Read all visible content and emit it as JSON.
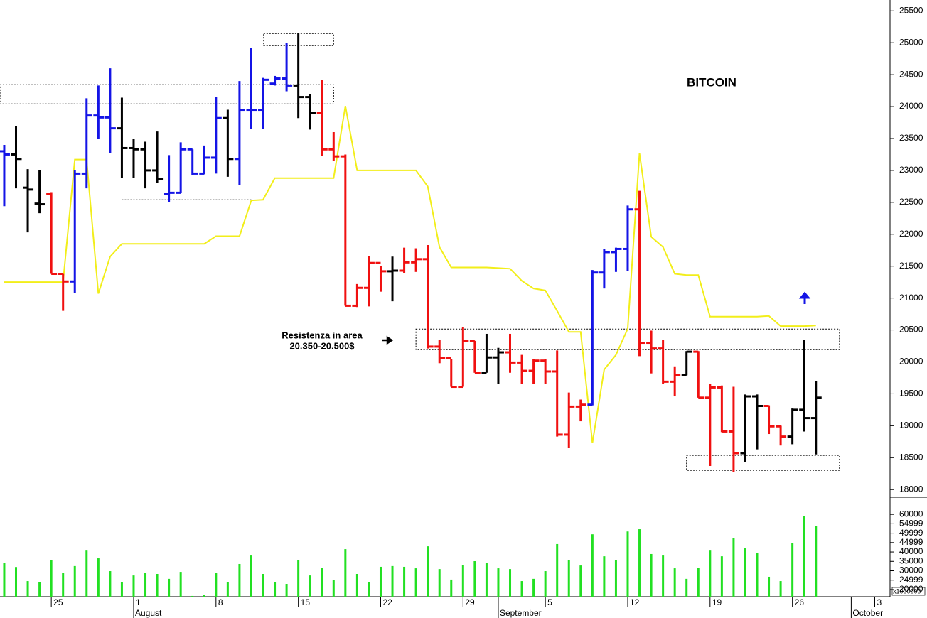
{
  "chart_data": {
    "type": "ohlc",
    "title": "BITCOIN",
    "annotation": [
      "Resistenza in area",
      "20.350-20.500$"
    ],
    "open": [
      23300,
      23250,
      22730,
      22480,
      22630,
      21380,
      21260,
      22950,
      23860,
      23830,
      23660,
      23350,
      23330,
      23000,
      22630,
      22650,
      23330,
      22950,
      23200,
      23820,
      23180,
      23950,
      23950,
      24360,
      24440,
      24330,
      24150,
      23900,
      23330,
      23220,
      20880,
      21160,
      21550,
      21420,
      21430,
      21560,
      21610,
      20240,
      20060,
      19610,
      20330,
      19830,
      20070,
      20150,
      19990,
      19860,
      20020,
      19850,
      18860,
      19300,
      19330,
      21400,
      21720,
      21770,
      22390,
      20300,
      20210,
      19690,
      19790,
      20160,
      19440,
      19600,
      18910,
      18570,
      19460,
      19310,
      18990,
      18830,
      19250,
      19120
    ],
    "high": [
      23400,
      23690,
      23020,
      23000,
      22660,
      21380,
      23000,
      24130,
      24330,
      24600,
      24140,
      23490,
      23450,
      23610,
      23240,
      23440,
      23330,
      23390,
      24150,
      23950,
      24400,
      24920,
      24450,
      24480,
      25000,
      25150,
      24200,
      24420,
      23600,
      23250,
      21220,
      21660,
      21500,
      21650,
      21790,
      21780,
      21830,
      20350,
      20050,
      20550,
      20330,
      20440,
      20220,
      20440,
      20110,
      20050,
      20050,
      20180,
      19520,
      19410,
      21440,
      21770,
      21790,
      22450,
      22680,
      20490,
      20350,
      19930,
      20170,
      20170,
      19660,
      19630,
      19610,
      19490,
      19490,
      19320,
      19000,
      19270,
      20350,
      19700
    ],
    "low": [
      22440,
      22720,
      22030,
      22330,
      21380,
      20800,
      21080,
      22720,
      23490,
      23270,
      22880,
      22880,
      22720,
      22800,
      22500,
      22650,
      22930,
      22940,
      22950,
      22900,
      22770,
      23650,
      23650,
      24330,
      24240,
      23820,
      23640,
      23230,
      23150,
      20880,
      20860,
      20870,
      21100,
      20950,
      21390,
      21410,
      20210,
      19980,
      19610,
      19610,
      19830,
      19830,
      19660,
      19830,
      19660,
      19660,
      19660,
      18830,
      18650,
      19070,
      19320,
      21150,
      21410,
      21430,
      20090,
      19820,
      19660,
      19460,
      19790,
      19440,
      18370,
      18900,
      18280,
      18430,
      18630,
      18870,
      18690,
      18710,
      18910,
      18550
    ],
    "close": [
      23250,
      23180,
      22700,
      22470,
      21380,
      21260,
      22950,
      23860,
      23830,
      23660,
      23350,
      23330,
      23000,
      22860,
      22650,
      23330,
      22950,
      23200,
      23820,
      23180,
      23950,
      23950,
      24420,
      24440,
      24330,
      24150,
      23900,
      23330,
      23220,
      20880,
      21160,
      21550,
      21420,
      21430,
      21560,
      21610,
      20240,
      20060,
      19610,
      20330,
      19830,
      20070,
      20150,
      19990,
      19860,
      20020,
      19850,
      18860,
      19300,
      19330,
      21400,
      21720,
      21770,
      22390,
      20300,
      20210,
      19690,
      19790,
      20160,
      19440,
      19600,
      18910,
      18570,
      19460,
      19310,
      18990,
      18830,
      19250,
      19120,
      19440
    ],
    "colors": [
      "#1414e6",
      "#000000",
      "#000000",
      "#000000",
      "#f01010",
      "#f01010",
      "#1414e6",
      "#1414e6",
      "#1414e6",
      "#1414e6",
      "#000000",
      "#000000",
      "#000000",
      "#000000",
      "#1414e6",
      "#1414e6",
      "#1414e6",
      "#1414e6",
      "#1414e6",
      "#000000",
      "#1414e6",
      "#1414e6",
      "#1414e6",
      "#1414e6",
      "#1414e6",
      "#000000",
      "#000000",
      "#f01010",
      "#f01010",
      "#f01010",
      "#f01010",
      "#f01010",
      "#f01010",
      "#000000",
      "#f01010",
      "#f01010",
      "#f01010",
      "#f01010",
      "#f01010",
      "#f01010",
      "#f01010",
      "#000000",
      "#000000",
      "#f01010",
      "#f01010",
      "#f01010",
      "#f01010",
      "#f01010",
      "#f01010",
      "#f01010",
      "#1414e6",
      "#1414e6",
      "#1414e6",
      "#1414e6",
      "#f01010",
      "#f01010",
      "#f01010",
      "#f01010",
      "#000000",
      "#f01010",
      "#f01010",
      "#f01010",
      "#f01010",
      "#000000",
      "#000000",
      "#f01010",
      "#f01010",
      "#000000",
      "#000000",
      "#000000"
    ],
    "xlim": [
      -0.36,
      75.3
    ],
    "xticks": [
      {
        "value": 4,
        "label": "25"
      },
      {
        "value": 11,
        "label": "1"
      },
      {
        "value": 18,
        "label": "8"
      },
      {
        "value": 25,
        "label": "15"
      },
      {
        "value": 32,
        "label": "22"
      },
      {
        "value": 39,
        "label": "29"
      },
      {
        "value": 46,
        "label": "5"
      },
      {
        "value": 53,
        "label": "12"
      },
      {
        "value": 60,
        "label": "19"
      },
      {
        "value": 67,
        "label": "26"
      },
      {
        "value": 74,
        "label": "3"
      }
    ],
    "month_labels": [
      {
        "value": 11,
        "label": "August"
      },
      {
        "value": 42,
        "label": "September"
      },
      {
        "value": 72,
        "label": "October"
      }
    ],
    "ylim": [
      17880,
      25670
    ],
    "yticks": [
      18000,
      18500,
      19000,
      19500,
      20000,
      20500,
      21000,
      21500,
      22000,
      22500,
      23000,
      23500,
      24000,
      24500,
      25000,
      25500
    ],
    "overlay": {
      "color": "#f2ee1a",
      "values": [
        21250,
        21250,
        21250,
        21250,
        21250,
        21250,
        23170,
        23170,
        21070,
        21650,
        21850,
        21850,
        21850,
        21850,
        21850,
        21850,
        21850,
        21850,
        21970,
        21970,
        21970,
        22530,
        22540,
        22880,
        22880,
        22880,
        22880,
        22880,
        22880,
        24010,
        23000,
        23000,
        23000,
        23000,
        23000,
        23000,
        22750,
        21800,
        21480,
        21480,
        21480,
        21480,
        21470,
        21460,
        21270,
        21150,
        21120,
        20800,
        20470,
        20470,
        18730,
        19880,
        20110,
        20520,
        23270,
        21960,
        21800,
        21380,
        21360,
        21360,
        20710,
        20710,
        20710,
        20710,
        20710,
        20720,
        20560,
        20560,
        20560,
        20570
      ]
    },
    "volume": {
      "color": "#22e022",
      "axis_label": "x1000000",
      "values": [
        34000,
        32000,
        24500,
        23800,
        35800,
        29000,
        32500,
        41100,
        36600,
        29800,
        23800,
        27500,
        29000,
        28300,
        25700,
        29400,
        16600,
        17000,
        29000,
        23800,
        33600,
        38100,
        28300,
        23800,
        23000,
        35500,
        27500,
        31700,
        24900,
        41500,
        28300,
        23800,
        32100,
        32500,
        32100,
        31300,
        43000,
        30900,
        25300,
        33200,
        35100,
        34000,
        31300,
        30900,
        24500,
        25700,
        29800,
        44200,
        35500,
        32800,
        49400,
        37700,
        35500,
        50900,
        52100,
        38900,
        38100,
        31300,
        25700,
        31700,
        41100,
        37700,
        47200,
        41900,
        39600,
        26800,
        24500,
        44900,
        59200,
        54000
      ],
      "ylim": [
        16200,
        68000
      ],
      "yticks": [
        20000,
        24999,
        30000,
        35000,
        40000,
        44999,
        49999,
        54999,
        60000
      ]
    },
    "boxes": [
      {
        "x": [
          22.05,
          28.0
        ],
        "y": [
          24955,
          25144
        ]
      },
      {
        "x": [
          -0.36,
          28.0
        ],
        "y": [
          24042,
          24343
        ]
      },
      {
        "x": [
          35.0,
          71.0
        ],
        "y": [
          20192,
          20515
        ]
      },
      {
        "x": [
          58.0,
          71.0
        ],
        "y": [
          18301,
          18535
        ]
      }
    ],
    "levels": [
      {
        "x": [
          10.0,
          21.1
        ],
        "y": 22540
      }
    ]
  }
}
